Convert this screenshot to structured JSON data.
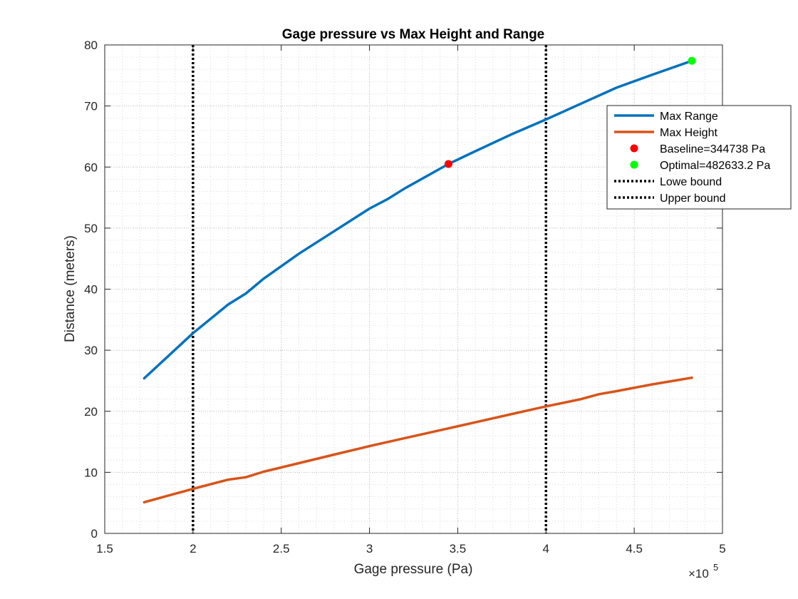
{
  "chart_data": {
    "type": "line",
    "title": "Gage pressure vs Max Height and Range",
    "xlabel": "Gage pressure (Pa)",
    "ylabel": "Distance (meters)",
    "x_exponent_label": "×10",
    "x_exponent_power": "5",
    "xlim": [
      150000,
      500000
    ],
    "ylim": [
      0,
      80
    ],
    "x_ticks": [
      150000,
      200000,
      250000,
      300000,
      350000,
      400000,
      450000,
      500000
    ],
    "x_tick_labels": [
      "1.5",
      "2",
      "2.5",
      "3",
      "3.5",
      "4",
      "4.5",
      "5"
    ],
    "y_ticks": [
      0,
      10,
      20,
      30,
      40,
      50,
      60,
      70,
      80
    ],
    "y_tick_labels": [
      "0",
      "10",
      "20",
      "30",
      "40",
      "50",
      "60",
      "70",
      "80"
    ],
    "grid": true,
    "minor_grid": true,
    "legend_position": "top-right (outside)",
    "series": [
      {
        "name": "Max Range",
        "color": "#0072BD",
        "x": [
          172369,
          200000,
          220000,
          230000,
          240000,
          260000,
          280000,
          300000,
          310000,
          320000,
          344738,
          360000,
          380000,
          400000,
          420000,
          440000,
          460000,
          482633
        ],
        "y": [
          25.4,
          32.8,
          37.5,
          39.3,
          41.7,
          45.8,
          49.5,
          53.2,
          54.7,
          56.5,
          60.5,
          62.6,
          65.3,
          67.8,
          70.4,
          73.0,
          75.1,
          77.4
        ]
      },
      {
        "name": "Max Height",
        "color": "#D95319",
        "x": [
          172369,
          200000,
          220000,
          230000,
          240000,
          260000,
          280000,
          300000,
          320000,
          344738,
          360000,
          380000,
          400000,
          420000,
          430000,
          440000,
          460000,
          482633
        ],
        "y": [
          5.1,
          7.3,
          8.8,
          9.2,
          10.1,
          11.5,
          12.9,
          14.3,
          15.6,
          17.2,
          18.2,
          19.5,
          20.8,
          22.0,
          22.8,
          23.3,
          24.4,
          25.5
        ]
      }
    ],
    "points": [
      {
        "name": "Baseline=344738 Pa",
        "x": 344738,
        "y": 60.5,
        "color": "#FF0000"
      },
      {
        "name": "Optimal=482633.2 Pa",
        "x": 482633.2,
        "y": 77.4,
        "color": "#00FF00"
      }
    ],
    "vlines": [
      {
        "name": "Lowe bound",
        "x": 200000,
        "color": "#000000"
      },
      {
        "name": "Upper bound",
        "x": 400000,
        "color": "#000000"
      }
    ]
  }
}
